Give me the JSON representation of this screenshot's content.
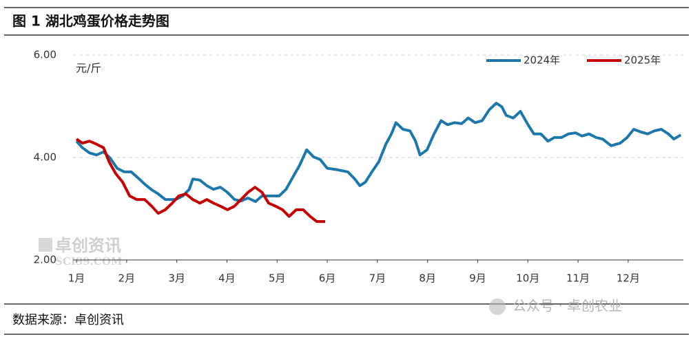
{
  "chart_data": {
    "type": "line",
    "title": "图 1 湖北鸡蛋价格走势图",
    "y_unit": "元/斤",
    "source": "数据来源：卓创资讯",
    "watermarks": [
      "卓创资讯",
      "SCI99.COM",
      "公众号 · 卓创农业"
    ],
    "xlim": [
      1,
      13.1
    ],
    "xticks": [
      {
        "value": 1,
        "label": "1月"
      },
      {
        "value": 2,
        "label": "2月"
      },
      {
        "value": 3,
        "label": "3月"
      },
      {
        "value": 4,
        "label": "4月"
      },
      {
        "value": 5,
        "label": "5月"
      },
      {
        "value": 6,
        "label": "6月"
      },
      {
        "value": 7,
        "label": "7月"
      },
      {
        "value": 8,
        "label": "8月"
      },
      {
        "value": 9,
        "label": "9月"
      },
      {
        "value": 10,
        "label": "10月"
      },
      {
        "value": 11,
        "label": "11月"
      },
      {
        "value": 12,
        "label": "12月"
      }
    ],
    "ylim": [
      2,
      6
    ],
    "yticks": [
      {
        "value": 2,
        "label": "2.00"
      },
      {
        "value": 4,
        "label": "4.00"
      },
      {
        "value": 6,
        "label": "6.00"
      }
    ],
    "grid": true,
    "legend": "top-right",
    "series": [
      {
        "name": "2024年",
        "color": "#1f77a8",
        "x": [
          1.0,
          1.12,
          1.26,
          1.4,
          1.54,
          1.67,
          1.81,
          1.95,
          2.09,
          2.22,
          2.36,
          2.5,
          2.63,
          2.77,
          2.98,
          3.12,
          3.25,
          3.32,
          3.46,
          3.6,
          3.73,
          3.87,
          4.01,
          4.15,
          4.28,
          4.42,
          4.57,
          4.7,
          4.9,
          5.04,
          5.18,
          5.31,
          5.45,
          5.59,
          5.73,
          5.86,
          6.0,
          6.21,
          6.41,
          6.55,
          6.65,
          6.76,
          6.89,
          7.03,
          7.17,
          7.28,
          7.37,
          7.51,
          7.65,
          7.76,
          7.85,
          7.99,
          8.13,
          8.27,
          8.4,
          8.54,
          8.68,
          8.81,
          8.95,
          9.09,
          9.23,
          9.37,
          9.48,
          9.57,
          9.71,
          9.85,
          9.99,
          10.12,
          10.26,
          10.4,
          10.53,
          10.67,
          10.81,
          10.95,
          11.08,
          11.22,
          11.36,
          11.49,
          11.66,
          11.84,
          11.98,
          12.11,
          12.25,
          12.39,
          12.52,
          12.66,
          12.8,
          12.91,
          13.05
        ],
        "values": [
          4.32,
          4.19,
          4.09,
          4.05,
          4.11,
          3.99,
          3.79,
          3.72,
          3.72,
          3.61,
          3.48,
          3.37,
          3.29,
          3.18,
          3.18,
          3.25,
          3.38,
          3.58,
          3.56,
          3.45,
          3.38,
          3.42,
          3.32,
          3.18,
          3.15,
          3.21,
          3.14,
          3.25,
          3.25,
          3.25,
          3.38,
          3.61,
          3.85,
          4.15,
          4.01,
          3.96,
          3.79,
          3.76,
          3.72,
          3.58,
          3.45,
          3.52,
          3.72,
          3.92,
          4.26,
          4.46,
          4.68,
          4.55,
          4.52,
          4.32,
          4.05,
          4.15,
          4.46,
          4.72,
          4.64,
          4.68,
          4.66,
          4.77,
          4.68,
          4.72,
          4.93,
          5.06,
          4.99,
          4.82,
          4.77,
          4.9,
          4.66,
          4.46,
          4.46,
          4.32,
          4.39,
          4.39,
          4.46,
          4.48,
          4.42,
          4.46,
          4.39,
          4.36,
          4.23,
          4.28,
          4.39,
          4.55,
          4.5,
          4.46,
          4.52,
          4.55,
          4.46,
          4.36,
          4.44
        ]
      },
      {
        "name": "2025年",
        "color": "#c00000",
        "x": [
          1.0,
          1.12,
          1.26,
          1.4,
          1.54,
          1.65,
          1.78,
          1.92,
          2.06,
          2.2,
          2.36,
          2.5,
          2.63,
          2.77,
          2.91,
          3.04,
          3.18,
          3.32,
          3.46,
          3.6,
          3.73,
          3.87,
          4.01,
          4.15,
          4.28,
          4.42,
          4.56,
          4.7,
          4.83,
          4.97,
          5.11,
          5.24,
          5.38,
          5.52,
          5.66,
          5.79,
          5.96
        ],
        "values": [
          4.36,
          4.28,
          4.32,
          4.26,
          4.19,
          3.92,
          3.69,
          3.52,
          3.25,
          3.18,
          3.18,
          3.05,
          2.91,
          2.98,
          3.11,
          3.25,
          3.29,
          3.18,
          3.11,
          3.18,
          3.11,
          3.05,
          2.98,
          3.05,
          3.18,
          3.32,
          3.42,
          3.32,
          3.11,
          3.05,
          2.98,
          2.85,
          2.98,
          2.98,
          2.85,
          2.75,
          2.75
        ]
      }
    ]
  }
}
